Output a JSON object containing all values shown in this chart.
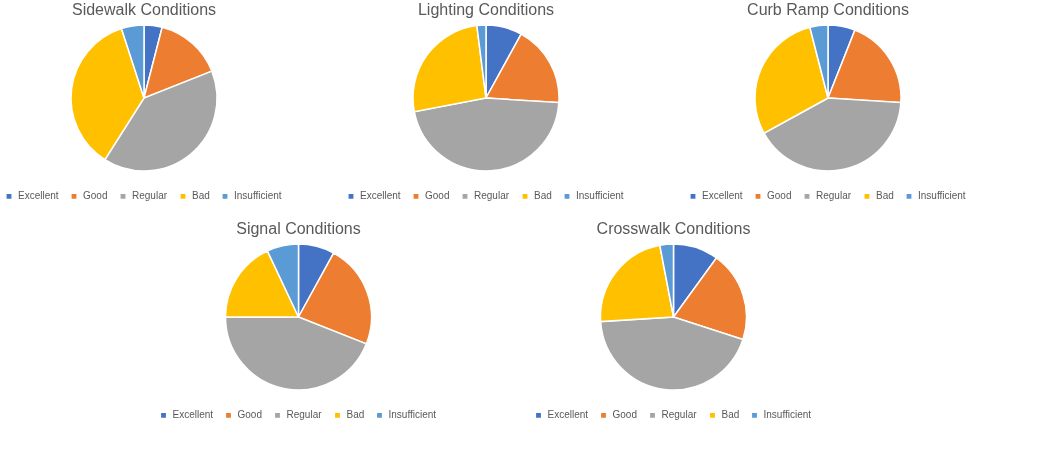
{
  "chart_data": [
    {
      "type": "pie",
      "title": "Sidewalk Conditions",
      "categories": [
        "Excellent",
        "Good",
        "Regular",
        "Bad",
        "Insufficient"
      ],
      "values": [
        4,
        15,
        40,
        36,
        5
      ],
      "colors": [
        "#4472c4",
        "#ed7d31",
        "#a5a5a5",
        "#ffc000",
        "#5b9bd5"
      ],
      "legend": "bottom"
    },
    {
      "type": "pie",
      "title": "Lighting Conditions",
      "categories": [
        "Excellent",
        "Good",
        "Regular",
        "Bad",
        "Insufficient"
      ],
      "values": [
        8,
        18,
        46,
        26,
        2
      ],
      "colors": [
        "#4472c4",
        "#ed7d31",
        "#a5a5a5",
        "#ffc000",
        "#5b9bd5"
      ],
      "legend": "bottom"
    },
    {
      "type": "pie",
      "title": "Curb Ramp Conditions",
      "categories": [
        "Excellent",
        "Good",
        "Regular",
        "Bad",
        "Insufficient"
      ],
      "values": [
        6,
        20,
        41,
        29,
        4
      ],
      "colors": [
        "#4472c4",
        "#ed7d31",
        "#a5a5a5",
        "#ffc000",
        "#5b9bd5"
      ],
      "legend": "bottom"
    },
    {
      "type": "pie",
      "title": "Signal Conditions",
      "categories": [
        "Excellent",
        "Good",
        "Regular",
        "Bad",
        "Insufficient"
      ],
      "values": [
        8,
        23,
        44,
        18,
        7
      ],
      "colors": [
        "#4472c4",
        "#ed7d31",
        "#a5a5a5",
        "#ffc000",
        "#5b9bd5"
      ],
      "legend": "bottom"
    },
    {
      "type": "pie",
      "title": "Crosswalk Conditions",
      "categories": [
        "Excellent",
        "Good",
        "Regular",
        "Bad",
        "Insufficient"
      ],
      "values": [
        10,
        20,
        44,
        23,
        3
      ],
      "colors": [
        "#4472c4",
        "#ed7d31",
        "#a5a5a5",
        "#ffc000",
        "#5b9bd5"
      ],
      "legend": "bottom"
    }
  ]
}
